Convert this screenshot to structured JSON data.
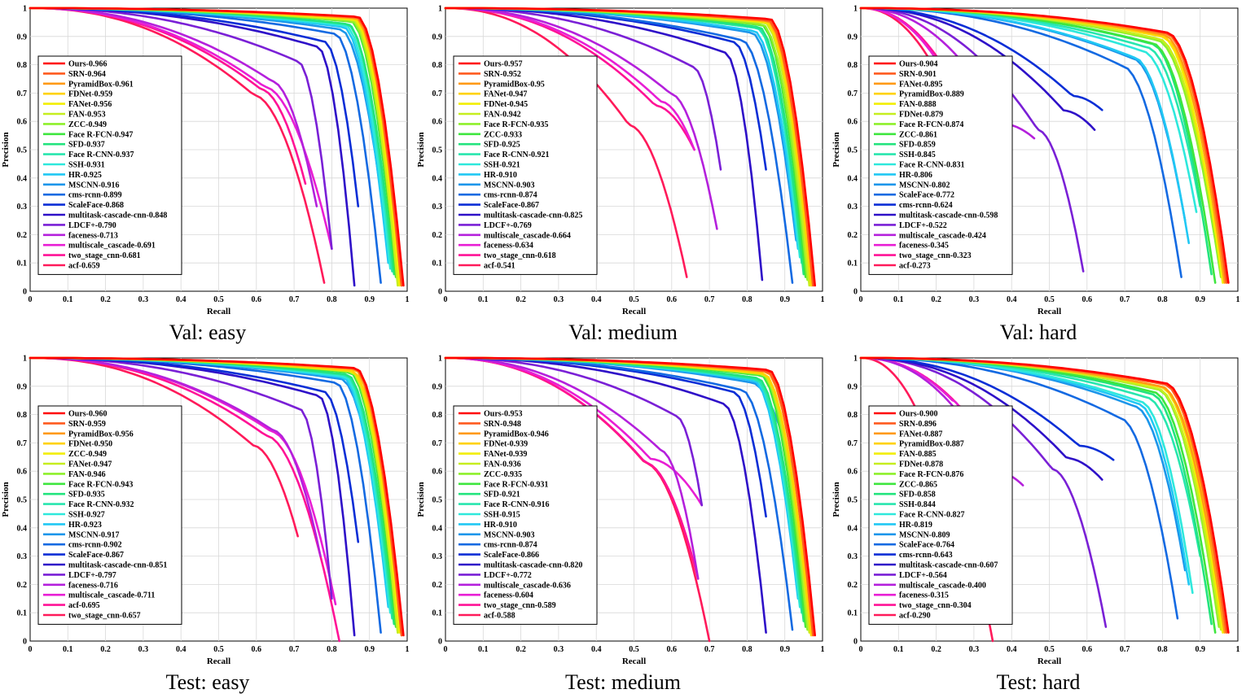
{
  "palette": [
    "#ff0000",
    "#ff5a1e",
    "#ff9a16",
    "#ffd200",
    "#f2ee00",
    "#c6ee1e",
    "#8ef02a",
    "#3ee63e",
    "#22e47e",
    "#28e6ae",
    "#2ee8dc",
    "#20c8f4",
    "#1c96ea",
    "#146ae2",
    "#0a2ed6",
    "#2e10c8",
    "#7a20d6",
    "#b420dc",
    "#e81ed4",
    "#ff1296",
    "#ff1a5a"
  ],
  "axes": {
    "xlabel": "Recall",
    "ylabel": "Precision",
    "xticks": [
      0,
      0.1,
      0.2,
      0.3,
      0.4,
      0.5,
      0.6,
      0.7,
      0.8,
      0.9,
      1
    ],
    "yticks": [
      0,
      0.1,
      0.2,
      0.3,
      0.4,
      0.5,
      0.6,
      0.7,
      0.8,
      0.9,
      1
    ],
    "xlim": [
      0,
      1
    ],
    "ylim": [
      0,
      1
    ],
    "grid": true,
    "legend": "left"
  },
  "chart_data": [
    {
      "type": "line",
      "title": "Val: easy",
      "legend_placement": "center-left",
      "series": [
        {
          "name": "Ours-0.966",
          "ap": 0.966,
          "end_recall": 0.99,
          "end_precision": 0.02
        },
        {
          "name": "SRN-0.964",
          "ap": 0.964,
          "end_recall": 0.985,
          "end_precision": 0.02
        },
        {
          "name": "PyramidBox-0.961",
          "ap": 0.961,
          "end_recall": 0.985,
          "end_precision": 0.02
        },
        {
          "name": "FDNet-0.959",
          "ap": 0.959,
          "end_recall": 0.985,
          "end_precision": 0.02
        },
        {
          "name": "FANet-0.956",
          "ap": 0.956,
          "end_recall": 0.98,
          "end_precision": 0.02
        },
        {
          "name": "FAN-0.953",
          "ap": 0.953,
          "end_recall": 0.975,
          "end_precision": 0.02
        },
        {
          "name": "ZCC-0.949",
          "ap": 0.949,
          "end_recall": 0.975,
          "end_precision": 0.03
        },
        {
          "name": "Face R-FCN-0.947",
          "ap": 0.947,
          "end_recall": 0.97,
          "end_precision": 0.05
        },
        {
          "name": "SFD-0.937",
          "ap": 0.937,
          "end_recall": 0.965,
          "end_precision": 0.06
        },
        {
          "name": "Face R-CNN-0.937",
          "ap": 0.937,
          "end_recall": 0.96,
          "end_precision": 0.07
        },
        {
          "name": "SSH-0.931",
          "ap": 0.931,
          "end_recall": 0.955,
          "end_precision": 0.08
        },
        {
          "name": "HR-0.925",
          "ap": 0.925,
          "end_recall": 0.95,
          "end_precision": 0.1
        },
        {
          "name": "MSCNN-0.916",
          "ap": 0.916,
          "end_recall": 0.93,
          "end_precision": 0.35
        },
        {
          "name": "cms-rcnn-0.899",
          "ap": 0.899,
          "end_recall": 0.93,
          "end_precision": 0.03
        },
        {
          "name": "ScaleFace-0.868",
          "ap": 0.868,
          "end_recall": 0.87,
          "end_precision": 0.3
        },
        {
          "name": "multitask-cascade-cnn-0.848",
          "ap": 0.848,
          "end_recall": 0.86,
          "end_precision": 0.02
        },
        {
          "name": "LDCF+-0.790",
          "ap": 0.79,
          "end_recall": 0.8,
          "end_precision": 0.15
        },
        {
          "name": "faceness-0.713",
          "ap": 0.713,
          "end_recall": 0.76,
          "end_precision": 0.3
        },
        {
          "name": "multiscale_cascade-0.691",
          "ap": 0.691,
          "end_recall": 0.8,
          "end_precision": 0.15
        },
        {
          "name": "two_stage_cnn-0.681",
          "ap": 0.681,
          "end_recall": 0.73,
          "end_precision": 0.38
        },
        {
          "name": "acf-0.659",
          "ap": 0.659,
          "end_recall": 0.78,
          "end_precision": 0.03
        }
      ]
    },
    {
      "type": "line",
      "title": "Val: medium",
      "legend_placement": "center-left",
      "series": [
        {
          "name": "Ours-0.957",
          "ap": 0.957,
          "end_recall": 0.98,
          "end_precision": 0.02
        },
        {
          "name": "SRN-0.952",
          "ap": 0.952,
          "end_recall": 0.975,
          "end_precision": 0.02
        },
        {
          "name": "PyramidBox-0.95",
          "ap": 0.95,
          "end_recall": 0.975,
          "end_precision": 0.02
        },
        {
          "name": "FANet-0.947",
          "ap": 0.947,
          "end_recall": 0.97,
          "end_precision": 0.02
        },
        {
          "name": "FDNet-0.945",
          "ap": 0.945,
          "end_recall": 0.97,
          "end_precision": 0.02
        },
        {
          "name": "FAN-0.942",
          "ap": 0.942,
          "end_recall": 0.965,
          "end_precision": 0.02
        },
        {
          "name": "Face R-FCN-0.935",
          "ap": 0.935,
          "end_recall": 0.96,
          "end_precision": 0.04
        },
        {
          "name": "ZCC-0.933",
          "ap": 0.933,
          "end_recall": 0.955,
          "end_precision": 0.05
        },
        {
          "name": "SFD-0.925",
          "ap": 0.925,
          "end_recall": 0.95,
          "end_precision": 0.06
        },
        {
          "name": "Face R-CNN-0.921",
          "ap": 0.921,
          "end_recall": 0.945,
          "end_precision": 0.1
        },
        {
          "name": "SSH-0.921",
          "ap": 0.921,
          "end_recall": 0.94,
          "end_precision": 0.12
        },
        {
          "name": "HR-0.910",
          "ap": 0.91,
          "end_recall": 0.935,
          "end_precision": 0.15
        },
        {
          "name": "MSCNN-0.903",
          "ap": 0.903,
          "end_recall": 0.93,
          "end_precision": 0.18
        },
        {
          "name": "cms-rcnn-0.874",
          "ap": 0.874,
          "end_recall": 0.92,
          "end_precision": 0.03
        },
        {
          "name": "ScaleFace-0.867",
          "ap": 0.867,
          "end_recall": 0.85,
          "end_precision": 0.43
        },
        {
          "name": "multitask-cascade-cnn-0.825",
          "ap": 0.825,
          "end_recall": 0.84,
          "end_precision": 0.04
        },
        {
          "name": "LDCF+-0.769",
          "ap": 0.769,
          "end_recall": 0.73,
          "end_precision": 0.43
        },
        {
          "name": "multiscale_cascade-0.664",
          "ap": 0.664,
          "end_recall": 0.72,
          "end_precision": 0.22
        },
        {
          "name": "faceness-0.634",
          "ap": 0.634,
          "end_recall": 0.66,
          "end_precision": 0.5
        },
        {
          "name": "two_stage_cnn-0.618",
          "ap": 0.618,
          "end_recall": 0.66,
          "end_precision": 0.5
        },
        {
          "name": "acf-0.541",
          "ap": 0.541,
          "end_recall": 0.64,
          "end_precision": 0.05
        }
      ]
    },
    {
      "type": "line",
      "title": "Val: hard",
      "legend_placement": "center-left",
      "series": [
        {
          "name": "Ours-0.904",
          "ap": 0.904,
          "end_recall": 0.975,
          "end_precision": 0.03
        },
        {
          "name": "SRN-0.901",
          "ap": 0.901,
          "end_recall": 0.97,
          "end_precision": 0.03
        },
        {
          "name": "FANet-0.895",
          "ap": 0.895,
          "end_recall": 0.965,
          "end_precision": 0.03
        },
        {
          "name": "PyramidBox-0.889",
          "ap": 0.889,
          "end_recall": 0.97,
          "end_precision": 0.04
        },
        {
          "name": "FAN-0.888",
          "ap": 0.888,
          "end_recall": 0.96,
          "end_precision": 0.03
        },
        {
          "name": "FDNet-0.879",
          "ap": 0.879,
          "end_recall": 0.96,
          "end_precision": 0.04
        },
        {
          "name": "Face R-FCN-0.874",
          "ap": 0.874,
          "end_recall": 0.955,
          "end_precision": 0.05
        },
        {
          "name": "ZCC-0.861",
          "ap": 0.861,
          "end_recall": 0.94,
          "end_precision": 0.03
        },
        {
          "name": "SFD-0.859",
          "ap": 0.859,
          "end_recall": 0.93,
          "end_precision": 0.06
        },
        {
          "name": "SSH-0.845",
          "ap": 0.845,
          "end_recall": 0.9,
          "end_precision": 0.3
        },
        {
          "name": "Face R-CNN-0.831",
          "ap": 0.831,
          "end_recall": 0.89,
          "end_precision": 0.28
        },
        {
          "name": "HR-0.806",
          "ap": 0.806,
          "end_recall": 0.87,
          "end_precision": 0.17
        },
        {
          "name": "MSCNN-0.802",
          "ap": 0.802,
          "end_recall": 0.86,
          "end_precision": 0.25
        },
        {
          "name": "ScaleFace-0.772",
          "ap": 0.772,
          "end_recall": 0.85,
          "end_precision": 0.05
        },
        {
          "name": "cms-rcnn-0.624",
          "ap": 0.624,
          "end_recall": 0.64,
          "end_precision": 0.64
        },
        {
          "name": "multitask-cascade-cnn-0.598",
          "ap": 0.598,
          "end_recall": 0.62,
          "end_precision": 0.57
        },
        {
          "name": "LDCF+-0.522",
          "ap": 0.522,
          "end_recall": 0.59,
          "end_precision": 0.07
        },
        {
          "name": "multiscale_cascade-0.424",
          "ap": 0.424,
          "end_recall": 0.46,
          "end_precision": 0.54
        },
        {
          "name": "faceness-0.345",
          "ap": 0.345,
          "end_recall": 0.3,
          "end_precision": 0.6
        },
        {
          "name": "two_stage_cnn-0.323",
          "ap": 0.323,
          "end_recall": 0.31,
          "end_precision": 0.6
        },
        {
          "name": "acf-0.273",
          "ap": 0.273,
          "end_recall": 0.3,
          "end_precision": 0.6
        }
      ]
    },
    {
      "type": "line",
      "title": "Test: easy",
      "legend_placement": "center-left",
      "series": [
        {
          "name": "Ours-0.960",
          "ap": 0.96,
          "end_recall": 0.99,
          "end_precision": 0.02
        },
        {
          "name": "SRN-0.959",
          "ap": 0.959,
          "end_recall": 0.985,
          "end_precision": 0.02
        },
        {
          "name": "PyramidBox-0.956",
          "ap": 0.956,
          "end_recall": 0.985,
          "end_precision": 0.02
        },
        {
          "name": "FDNet-0.950",
          "ap": 0.95,
          "end_recall": 0.985,
          "end_precision": 0.02
        },
        {
          "name": "ZCC-0.949",
          "ap": 0.949,
          "end_recall": 0.98,
          "end_precision": 0.03
        },
        {
          "name": "FANet-0.947",
          "ap": 0.947,
          "end_recall": 0.975,
          "end_precision": 0.03
        },
        {
          "name": "FAN-0.946",
          "ap": 0.946,
          "end_recall": 0.975,
          "end_precision": 0.03
        },
        {
          "name": "Face R-FCN-0.943",
          "ap": 0.943,
          "end_recall": 0.97,
          "end_precision": 0.05
        },
        {
          "name": "SFD-0.935",
          "ap": 0.935,
          "end_recall": 0.965,
          "end_precision": 0.06
        },
        {
          "name": "Face R-CNN-0.932",
          "ap": 0.932,
          "end_recall": 0.96,
          "end_precision": 0.08
        },
        {
          "name": "SSH-0.927",
          "ap": 0.927,
          "end_recall": 0.955,
          "end_precision": 0.1
        },
        {
          "name": "HR-0.923",
          "ap": 0.923,
          "end_recall": 0.95,
          "end_precision": 0.12
        },
        {
          "name": "MSCNN-0.917",
          "ap": 0.917,
          "end_recall": 0.92,
          "end_precision": 0.5
        },
        {
          "name": "cms-rcnn-0.902",
          "ap": 0.902,
          "end_recall": 0.93,
          "end_precision": 0.03
        },
        {
          "name": "ScaleFace-0.867",
          "ap": 0.867,
          "end_recall": 0.87,
          "end_precision": 0.35
        },
        {
          "name": "multitask-cascade-cnn-0.851",
          "ap": 0.851,
          "end_recall": 0.86,
          "end_precision": 0.02
        },
        {
          "name": "LDCF+-0.797",
          "ap": 0.797,
          "end_recall": 0.8,
          "end_precision": 0.15
        },
        {
          "name": "faceness-0.716",
          "ap": 0.716,
          "end_recall": 0.77,
          "end_precision": 0.3
        },
        {
          "name": "multiscale_cascade-0.711",
          "ap": 0.711,
          "end_recall": 0.81,
          "end_precision": 0.13
        },
        {
          "name": "acf-0.695",
          "ap": 0.695,
          "end_recall": 0.82,
          "end_precision": 0.0
        },
        {
          "name": "two_stage_cnn-0.657",
          "ap": 0.657,
          "end_recall": 0.71,
          "end_precision": 0.37
        }
      ]
    },
    {
      "type": "line",
      "title": "Test: medium",
      "legend_placement": "center-left",
      "series": [
        {
          "name": "Ours-0.953",
          "ap": 0.953,
          "end_recall": 0.98,
          "end_precision": 0.02
        },
        {
          "name": "SRN-0.948",
          "ap": 0.948,
          "end_recall": 0.975,
          "end_precision": 0.02
        },
        {
          "name": "PyramidBox-0.946",
          "ap": 0.946,
          "end_recall": 0.975,
          "end_precision": 0.02
        },
        {
          "name": "FDNet-0.939",
          "ap": 0.939,
          "end_recall": 0.97,
          "end_precision": 0.02
        },
        {
          "name": "FANet-0.939",
          "ap": 0.939,
          "end_recall": 0.97,
          "end_precision": 0.02
        },
        {
          "name": "FAN-0.936",
          "ap": 0.936,
          "end_recall": 0.965,
          "end_precision": 0.03
        },
        {
          "name": "ZCC-0.935",
          "ap": 0.935,
          "end_recall": 0.96,
          "end_precision": 0.04
        },
        {
          "name": "Face R-FCN-0.931",
          "ap": 0.931,
          "end_recall": 0.955,
          "end_precision": 0.05
        },
        {
          "name": "SFD-0.921",
          "ap": 0.921,
          "end_recall": 0.95,
          "end_precision": 0.07
        },
        {
          "name": "Face R-CNN-0.916",
          "ap": 0.916,
          "end_recall": 0.945,
          "end_precision": 0.1
        },
        {
          "name": "SSH-0.915",
          "ap": 0.915,
          "end_recall": 0.94,
          "end_precision": 0.12
        },
        {
          "name": "HR-0.910",
          "ap": 0.91,
          "end_recall": 0.935,
          "end_precision": 0.15
        },
        {
          "name": "MSCNN-0.903",
          "ap": 0.903,
          "end_recall": 0.93,
          "end_precision": 0.55
        },
        {
          "name": "cms-rcnn-0.874",
          "ap": 0.874,
          "end_recall": 0.92,
          "end_precision": 0.04
        },
        {
          "name": "ScaleFace-0.866",
          "ap": 0.866,
          "end_recall": 0.85,
          "end_precision": 0.44
        },
        {
          "name": "multitask-cascade-cnn-0.820",
          "ap": 0.82,
          "end_recall": 0.85,
          "end_precision": 0.03
        },
        {
          "name": "LDCF+-0.772",
          "ap": 0.772,
          "end_recall": 0.68,
          "end_precision": 0.48
        },
        {
          "name": "multiscale_cascade-0.636",
          "ap": 0.636,
          "end_recall": 0.67,
          "end_precision": 0.22
        },
        {
          "name": "faceness-0.604",
          "ap": 0.604,
          "end_recall": 0.68,
          "end_precision": 0.48
        },
        {
          "name": "two_stage_cnn-0.589",
          "ap": 0.589,
          "end_recall": 0.67,
          "end_precision": 0.22
        },
        {
          "name": "acf-0.588",
          "ap": 0.588,
          "end_recall": 0.7,
          "end_precision": 0.0
        }
      ]
    },
    {
      "type": "line",
      "title": "Test: hard",
      "legend_placement": "center-left",
      "series": [
        {
          "name": "Ours-0.900",
          "ap": 0.9,
          "end_recall": 0.975,
          "end_precision": 0.03
        },
        {
          "name": "SRN-0.896",
          "ap": 0.896,
          "end_recall": 0.97,
          "end_precision": 0.03
        },
        {
          "name": "FANet-0.887",
          "ap": 0.887,
          "end_recall": 0.965,
          "end_precision": 0.03
        },
        {
          "name": "PyramidBox-0.887",
          "ap": 0.887,
          "end_recall": 0.97,
          "end_precision": 0.04
        },
        {
          "name": "FAN-0.885",
          "ap": 0.885,
          "end_recall": 0.96,
          "end_precision": 0.03
        },
        {
          "name": "FDNet-0.878",
          "ap": 0.878,
          "end_recall": 0.955,
          "end_precision": 0.04
        },
        {
          "name": "Face R-FCN-0.876",
          "ap": 0.876,
          "end_recall": 0.95,
          "end_precision": 0.05
        },
        {
          "name": "ZCC-0.865",
          "ap": 0.865,
          "end_recall": 0.94,
          "end_precision": 0.03
        },
        {
          "name": "SFD-0.858",
          "ap": 0.858,
          "end_recall": 0.93,
          "end_precision": 0.06
        },
        {
          "name": "SSH-0.844",
          "ap": 0.844,
          "end_recall": 0.9,
          "end_precision": 0.3
        },
        {
          "name": "Face R-CNN-0.827",
          "ap": 0.827,
          "end_recall": 0.88,
          "end_precision": 0.17
        },
        {
          "name": "HR-0.819",
          "ap": 0.819,
          "end_recall": 0.87,
          "end_precision": 0.2
        },
        {
          "name": "MSCNN-0.809",
          "ap": 0.809,
          "end_recall": 0.86,
          "end_precision": 0.25
        },
        {
          "name": "ScaleFace-0.764",
          "ap": 0.764,
          "end_recall": 0.84,
          "end_precision": 0.08
        },
        {
          "name": "cms-rcnn-0.643",
          "ap": 0.643,
          "end_recall": 0.67,
          "end_precision": 0.64
        },
        {
          "name": "multitask-cascade-cnn-0.607",
          "ap": 0.607,
          "end_recall": 0.64,
          "end_precision": 0.57
        },
        {
          "name": "LDCF+-0.564",
          "ap": 0.564,
          "end_recall": 0.65,
          "end_precision": 0.05
        },
        {
          "name": "multiscale_cascade-0.400",
          "ap": 0.4,
          "end_recall": 0.43,
          "end_precision": 0.55
        },
        {
          "name": "faceness-0.315",
          "ap": 0.315,
          "end_recall": 0.27,
          "end_precision": 0.8
        },
        {
          "name": "two_stage_cnn-0.304",
          "ap": 0.304,
          "end_recall": 0.29,
          "end_precision": 0.78
        },
        {
          "name": "acf-0.290",
          "ap": 0.29,
          "end_recall": 0.35,
          "end_precision": 0.0
        }
      ]
    }
  ]
}
